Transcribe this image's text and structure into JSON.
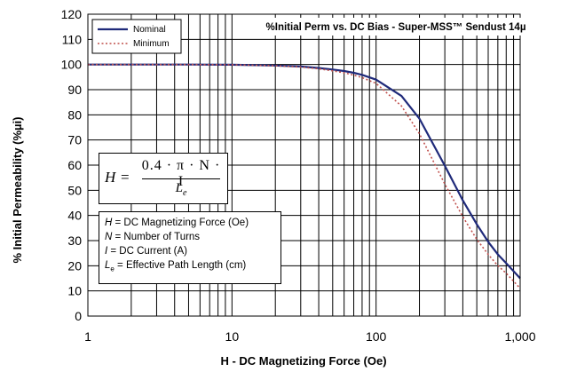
{
  "chart_data": {
    "type": "line",
    "title": "%Initial Perm vs. DC Bias - Super-MSS™ Sendust  14µ",
    "xlabel": "H - DC Magnetizing Force (Oe)",
    "ylabel": "% Initial Permeability (%µi)",
    "xscale": "log",
    "xlim": [
      1,
      1000
    ],
    "ylim": [
      0,
      120
    ],
    "x_ticks": [
      1,
      10,
      100,
      1000
    ],
    "x_tick_labels": [
      "1",
      "10",
      "100",
      "1,000"
    ],
    "y_ticks": [
      0,
      10,
      20,
      30,
      40,
      50,
      60,
      70,
      80,
      90,
      100,
      110,
      120
    ],
    "grid": true,
    "legend_position": "top-left",
    "series": [
      {
        "name": "Nominal",
        "color": "#1F2A7A",
        "style": "solid",
        "x": [
          1,
          5,
          10,
          20,
          30,
          40,
          50,
          60,
          70,
          80,
          100,
          150,
          200,
          300,
          400,
          500,
          600,
          700,
          800,
          1000
        ],
        "y": [
          100,
          100,
          99.9,
          99.6,
          99.2,
          98.6,
          98,
          97.4,
          96.7,
          95.9,
          94,
          87.5,
          78.5,
          59.8,
          46,
          36.5,
          29.5,
          24.5,
          21,
          15
        ]
      },
      {
        "name": "Minimum",
        "color": "#C0504D",
        "style": "dotted",
        "x": [
          1,
          5,
          10,
          20,
          30,
          40,
          50,
          60,
          70,
          80,
          100,
          150,
          200,
          300,
          400,
          500,
          600,
          700,
          800,
          1000
        ],
        "y": [
          100,
          100,
          99.9,
          99.5,
          99,
          98.3,
          97.5,
          96.7,
          95.8,
          94.8,
          92.5,
          83.5,
          72.5,
          52.5,
          39.5,
          30.5,
          24.5,
          20,
          17,
          11
        ]
      }
    ]
  },
  "formula": {
    "lhs": "H",
    "equals": "=",
    "numerator": "0.4 · π · N · I",
    "denominator_symbol": "L",
    "denominator_sub": "e"
  },
  "definitions": [
    {
      "symbol": "H",
      "sub": "",
      "text": " = DC Magnetizing Force (Oe)"
    },
    {
      "symbol": "N",
      "sub": "",
      "text": " = Number of Turns"
    },
    {
      "symbol": "I",
      "sub": "",
      "text": " = DC Current (A)"
    },
    {
      "symbol": "L",
      "sub": "e",
      "text": " = Effective Path Length (cm)"
    }
  ]
}
